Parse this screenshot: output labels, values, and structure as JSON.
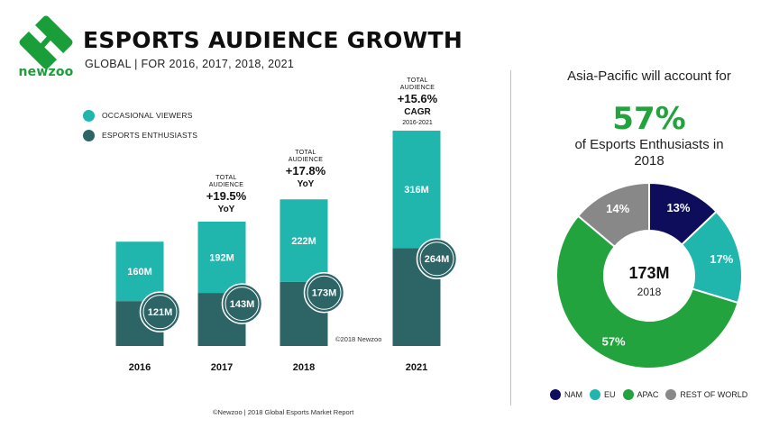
{
  "brand": {
    "name": "newzoo",
    "color": "#1a9e3a"
  },
  "header": {
    "title": "ESPORTS AUDIENCE GROWTH",
    "subtitle": "GLOBAL | FOR 2016, 2017, 2018, 2021"
  },
  "legend": [
    {
      "label": "OCCASIONAL VIEWERS",
      "color": "#20b6ad"
    },
    {
      "label": "ESPORTS ENTHUSIASTS",
      "color": "#2d6466"
    }
  ],
  "annotations": [
    {
      "year": "2017",
      "label": "TOTAL AUDIENCE",
      "value": "+19.5%",
      "unit": "YoY",
      "period": ""
    },
    {
      "year": "2018",
      "label": "TOTAL AUDIENCE",
      "value": "+17.8%",
      "unit": "YoY",
      "period": ""
    },
    {
      "year": "2021",
      "label": "TOTAL AUDIENCE",
      "value": "+15.6%",
      "unit": "CAGR",
      "period": "2016-2021"
    }
  ],
  "copyright": "©2018 Newzoo",
  "footnote": "©Newzoo | 2018 Global Esports Market Report",
  "right_panel": {
    "line1": "Asia-Pacific will account for",
    "big": "57%",
    "line2": "of Esports Enthusiasts in 2018"
  },
  "chart_data": [
    {
      "type": "bar",
      "stacked": true,
      "categories": [
        "2016",
        "2017",
        "2018",
        "2021"
      ],
      "series": [
        {
          "name": "ESPORTS ENTHUSIASTS",
          "values": [
            121,
            143,
            173,
            264
          ],
          "labels": [
            "121M",
            "143M",
            "173M",
            "264M"
          ],
          "color": "#2d6466"
        },
        {
          "name": "OCCASIONAL VIEWERS",
          "values": [
            160,
            192,
            222,
            316
          ],
          "labels": [
            "160M",
            "192M",
            "222M",
            "316M"
          ],
          "color": "#20b6ad"
        }
      ],
      "unit": "M"
    },
    {
      "type": "pie",
      "donut": true,
      "center_value": "173M",
      "center_label": "2018",
      "slices": [
        {
          "name": "NAM",
          "value": 13,
          "label": "13%",
          "color": "#0d0d5c"
        },
        {
          "name": "EU",
          "value": 17,
          "label": "17%",
          "color": "#20b6ad"
        },
        {
          "name": "APAC",
          "value": 57,
          "label": "57%",
          "color": "#23a33e"
        },
        {
          "name": "REST OF WORLD",
          "value": 14,
          "label": "14%",
          "color": "#888888"
        }
      ]
    }
  ]
}
